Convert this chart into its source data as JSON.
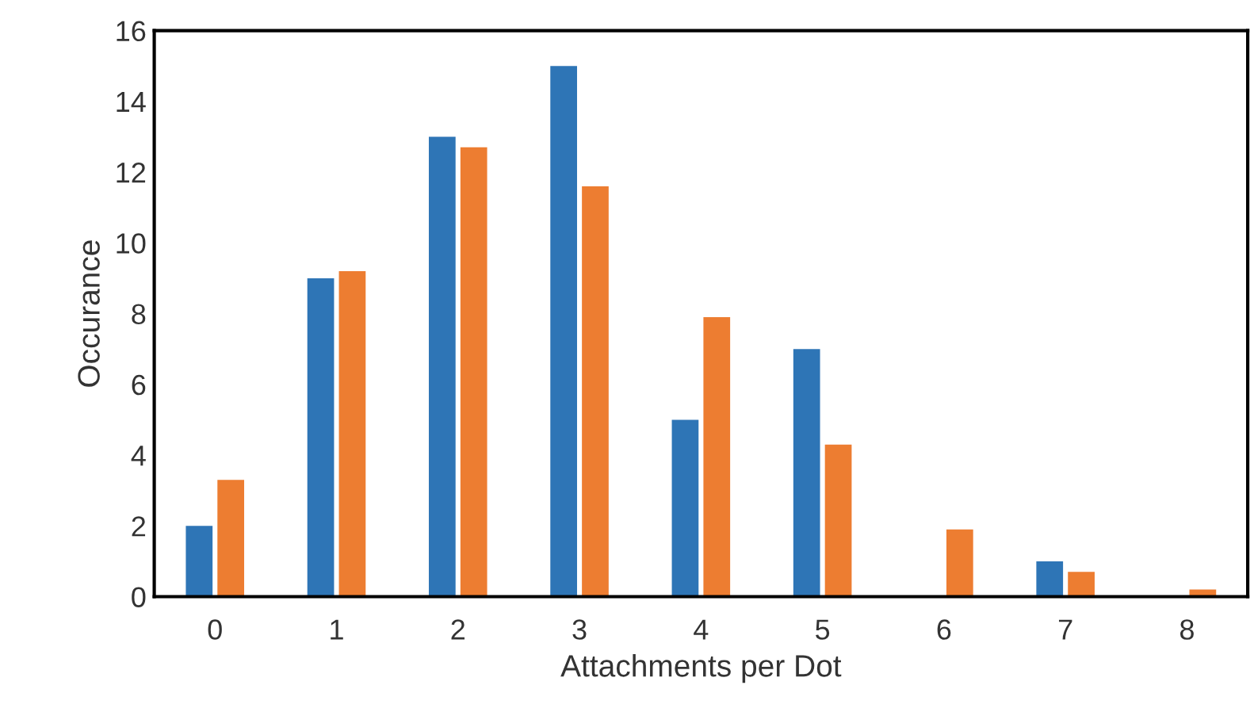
{
  "chart_data": {
    "type": "bar",
    "xlabel": "Attachments per Dot",
    "ylabel": "Occurance",
    "categories": [
      "0",
      "1",
      "2",
      "3",
      "4",
      "5",
      "6",
      "7",
      "8"
    ],
    "series": [
      {
        "color": "#2e75b6",
        "values": [
          2,
          9,
          13,
          15,
          5,
          7,
          0,
          1,
          0
        ]
      },
      {
        "color": "#ed7d31",
        "values": [
          3.3,
          9.2,
          12.7,
          11.6,
          7.9,
          4.3,
          1.9,
          0.7,
          0.2
        ]
      }
    ],
    "ylim": [
      0,
      16
    ],
    "yticks": [
      0,
      2,
      4,
      6,
      8,
      10,
      12,
      14,
      16
    ],
    "grid": false,
    "legend": false
  }
}
